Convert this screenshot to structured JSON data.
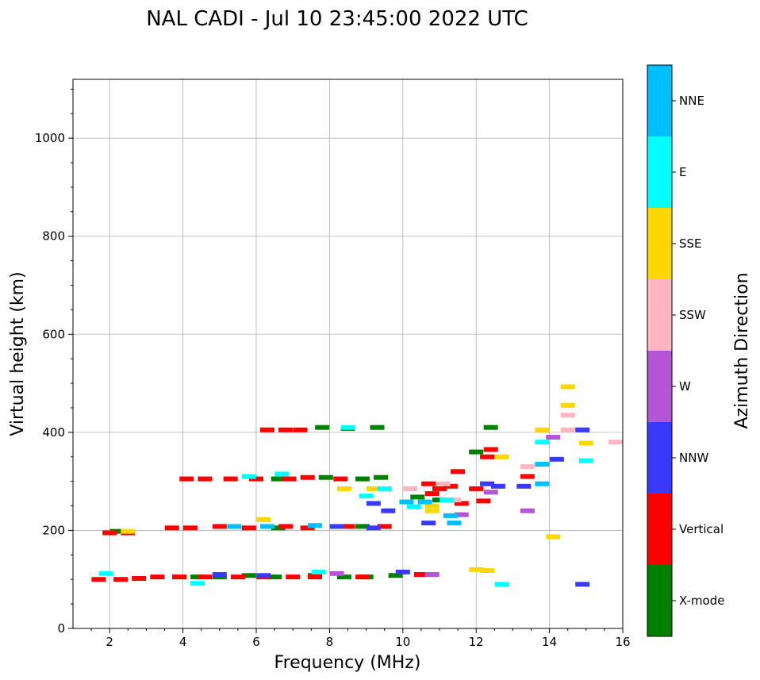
{
  "chart_data": {
    "type": "scatter",
    "title": "NAL CADI - Jul 10 23:45:00 2022 UTC",
    "xlabel": "Frequency (MHz)",
    "ylabel": "Virtual height (km)",
    "xlim": [
      1,
      16
    ],
    "ylim": [
      0,
      1120
    ],
    "xticks": [
      2,
      4,
      6,
      8,
      10,
      12,
      14,
      16
    ],
    "yticks": [
      0,
      200,
      400,
      600,
      800,
      1000
    ],
    "grid": true,
    "colorbar": {
      "label": "Azimuth Direction",
      "categories": [
        {
          "name": "X-mode",
          "color": "#008000"
        },
        {
          "name": "Vertical",
          "color": "#ff0000"
        },
        {
          "name": "NNW",
          "color": "#3a3aff"
        },
        {
          "name": "W",
          "color": "#b455d6"
        },
        {
          "name": "SSW",
          "color": "#ffb6c1"
        },
        {
          "name": "SSE",
          "color": "#ffd700"
        },
        {
          "name": "E",
          "color": "#00ffff"
        },
        {
          "name": "NNE",
          "color": "#00bfff"
        }
      ]
    },
    "series": [
      {
        "name": "X-mode",
        "points": [
          [
            4.4,
            105
          ],
          [
            5.0,
            105
          ],
          [
            5.8,
            108
          ],
          [
            6.5,
            105
          ],
          [
            7.6,
            108
          ],
          [
            8.4,
            105
          ],
          [
            9.0,
            105
          ],
          [
            9.8,
            108
          ],
          [
            6.6,
            205
          ],
          [
            8.9,
            208
          ],
          [
            6.6,
            305
          ],
          [
            7.9,
            308
          ],
          [
            8.9,
            305
          ],
          [
            9.4,
            308
          ],
          [
            8.5,
            408
          ],
          [
            9.3,
            410
          ],
          [
            7.8,
            410
          ],
          [
            10.4,
            268
          ],
          [
            11.0,
            262
          ],
          [
            12.4,
            410
          ],
          [
            12.0,
            360
          ],
          [
            2.2,
            198
          ]
        ]
      },
      {
        "name": "Vertical",
        "points": [
          [
            1.7,
            100
          ],
          [
            2.3,
            100
          ],
          [
            2.8,
            102
          ],
          [
            3.3,
            105
          ],
          [
            3.9,
            105
          ],
          [
            4.6,
            105
          ],
          [
            5.5,
            105
          ],
          [
            6.2,
            105
          ],
          [
            7.0,
            105
          ],
          [
            7.6,
            105
          ],
          [
            8.9,
            105
          ],
          [
            10.5,
            110
          ],
          [
            2.0,
            195
          ],
          [
            2.5,
            195
          ],
          [
            3.7,
            205
          ],
          [
            4.2,
            205
          ],
          [
            5.0,
            208
          ],
          [
            5.8,
            205
          ],
          [
            6.8,
            208
          ],
          [
            7.4,
            205
          ],
          [
            8.5,
            208
          ],
          [
            9.5,
            208
          ],
          [
            4.1,
            305
          ],
          [
            4.6,
            305
          ],
          [
            5.3,
            305
          ],
          [
            6.0,
            305
          ],
          [
            6.9,
            305
          ],
          [
            7.4,
            308
          ],
          [
            8.3,
            305
          ],
          [
            6.3,
            405
          ],
          [
            6.8,
            405
          ],
          [
            7.2,
            405
          ],
          [
            10.8,
            275
          ],
          [
            11.0,
            285
          ],
          [
            11.3,
            290
          ],
          [
            11.6,
            255
          ],
          [
            12.2,
            260
          ],
          [
            11.5,
            320
          ],
          [
            12.4,
            365
          ],
          [
            12.3,
            350
          ],
          [
            12.0,
            285
          ],
          [
            13.4,
            310
          ],
          [
            10.7,
            295
          ]
        ]
      },
      {
        "name": "NNW",
        "points": [
          [
            5.0,
            110
          ],
          [
            6.2,
            108
          ],
          [
            10.0,
            115
          ],
          [
            8.2,
            208
          ],
          [
            9.2,
            205
          ],
          [
            9.6,
            240
          ],
          [
            9.2,
            255
          ],
          [
            10.7,
            215
          ],
          [
            12.3,
            295
          ],
          [
            12.6,
            290
          ],
          [
            13.3,
            290
          ],
          [
            14.2,
            345
          ],
          [
            14.9,
            405
          ],
          [
            14.9,
            90
          ]
        ]
      },
      {
        "name": "W",
        "points": [
          [
            8.2,
            112
          ],
          [
            10.8,
            110
          ],
          [
            11.6,
            232
          ],
          [
            13.4,
            240
          ],
          [
            14.1,
            390
          ],
          [
            12.4,
            278
          ]
        ]
      },
      {
        "name": "SSW",
        "points": [
          [
            10.2,
            285
          ],
          [
            11.1,
            295
          ],
          [
            11.4,
            262
          ],
          [
            13.4,
            330
          ],
          [
            14.5,
            405
          ],
          [
            14.5,
            435
          ],
          [
            15.8,
            380
          ]
        ]
      },
      {
        "name": "SSE",
        "points": [
          [
            2.5,
            198
          ],
          [
            6.2,
            222
          ],
          [
            8.4,
            285
          ],
          [
            9.2,
            285
          ],
          [
            10.8,
            250
          ],
          [
            10.8,
            240
          ],
          [
            12.3,
            118
          ],
          [
            12.0,
            120
          ],
          [
            13.8,
            405
          ],
          [
            14.5,
            455
          ],
          [
            14.5,
            493
          ],
          [
            15.0,
            378
          ],
          [
            14.1,
            187
          ],
          [
            12.7,
            350
          ]
        ]
      },
      {
        "name": "E",
        "points": [
          [
            1.9,
            112
          ],
          [
            4.4,
            92
          ],
          [
            7.7,
            115
          ],
          [
            9.0,
            270
          ],
          [
            9.5,
            285
          ],
          [
            10.3,
            248
          ],
          [
            11.2,
            262
          ],
          [
            12.7,
            90
          ],
          [
            13.8,
            380
          ],
          [
            15.0,
            342
          ],
          [
            8.5,
            410
          ],
          [
            6.7,
            315
          ],
          [
            5.8,
            310
          ]
        ]
      },
      {
        "name": "NNE",
        "points": [
          [
            5.4,
            208
          ],
          [
            6.3,
            208
          ],
          [
            7.6,
            210
          ],
          [
            10.1,
            258
          ],
          [
            11.3,
            230
          ],
          [
            11.4,
            215
          ],
          [
            13.8,
            295
          ],
          [
            13.8,
            335
          ],
          [
            10.6,
            258
          ]
        ]
      }
    ]
  }
}
